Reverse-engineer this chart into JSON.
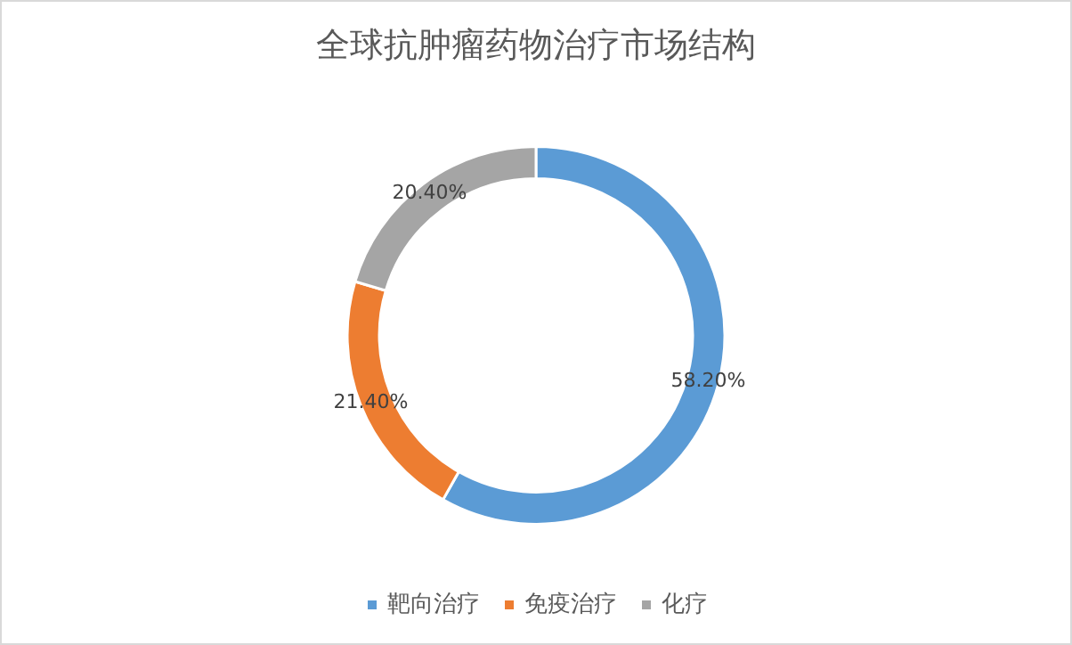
{
  "chart_data": {
    "type": "donut",
    "title": "全球抗肿瘤药物治疗市场结构",
    "categories": [
      "靶向治疗",
      "免疫治疗",
      "化疗"
    ],
    "values": [
      58.2,
      21.4,
      20.4
    ],
    "value_labels": [
      "58.20%",
      "21.40%",
      "20.40%"
    ],
    "colors": [
      "#5b9bd5",
      "#ed7d31",
      "#a5a5a5"
    ],
    "legend": "bottom"
  }
}
